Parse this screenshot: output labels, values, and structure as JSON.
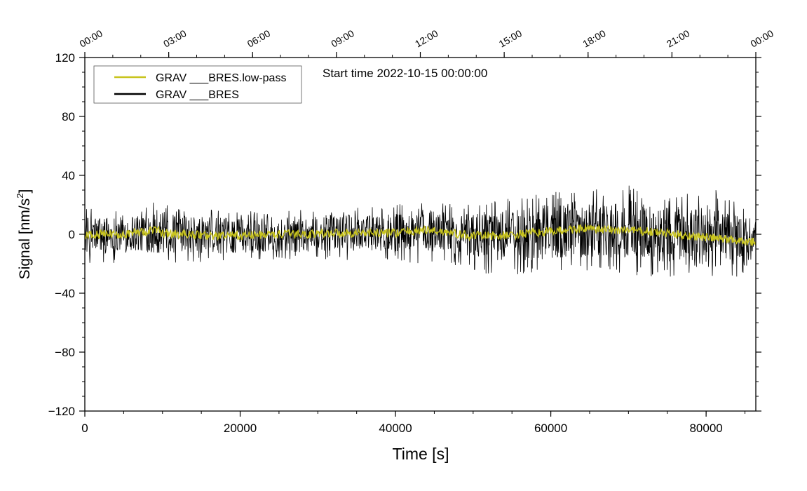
{
  "chart_data": {
    "type": "line",
    "annotation": "Start time 2022-10-15 00:00:00",
    "xlabel": "Time [s]",
    "ylabel_main": "Signal [nm/s",
    "ylabel_sup": "2",
    "ylabel_end": "]",
    "xlim": [
      0,
      86400
    ],
    "ylim": [
      -120,
      120
    ],
    "x_ticks": [
      "0",
      "20000",
      "40000",
      "60000",
      "80000"
    ],
    "x_tick_values": [
      0,
      20000,
      40000,
      60000,
      80000
    ],
    "y_ticks": [
      "120",
      "80",
      "40",
      "0",
      "−40",
      "−80",
      "−120"
    ],
    "y_tick_values": [
      120,
      80,
      40,
      0,
      -40,
      -80,
      -120
    ],
    "top_ticks": [
      "00:00",
      "03:00",
      "06:00",
      "09:00",
      "12:00",
      "15:00",
      "18:00",
      "21:00",
      "00:00"
    ],
    "top_tick_values": [
      0,
      10800,
      21600,
      32400,
      43200,
      54000,
      64800,
      75600,
      86400
    ],
    "legend_placement": "top-left",
    "grid": false,
    "series": [
      {
        "name": "GRAV ___BRES.low-pass",
        "color": "#c8c41e",
        "x": [
          0,
          2000,
          4000,
          6000,
          8000,
          9000,
          10000,
          12000,
          14000,
          16000,
          18000,
          20000,
          24000,
          28000,
          32000,
          36000,
          40000,
          42000,
          43500,
          46000,
          48000,
          50000,
          52000,
          54000,
          56000,
          58000,
          60000,
          62000,
          64000,
          66000,
          68000,
          70000,
          72000,
          74000,
          76000,
          78000,
          80000,
          82000,
          84000,
          86400
        ],
        "values": [
          -1,
          0,
          0,
          1,
          2,
          3,
          1,
          0,
          0,
          -1,
          -1,
          -1,
          0,
          0,
          1,
          1,
          1,
          2,
          3,
          2,
          0,
          -1,
          -1,
          -1,
          0,
          1,
          2,
          3,
          4,
          3,
          3,
          3,
          2,
          1,
          0,
          -1,
          -2,
          -3,
          -4,
          -5
        ],
        "spread": 3
      },
      {
        "name": "GRAV ___BRES",
        "color": "#000000",
        "envelope_x": [
          0,
          4000,
          8000,
          9000,
          12000,
          16000,
          20000,
          24000,
          28000,
          32000,
          36000,
          40000,
          43000,
          46000,
          50000,
          52000,
          54000,
          58000,
          62000,
          64000,
          68000,
          70000,
          72000,
          76000,
          80000,
          84000,
          86400
        ],
        "envelope_upper": [
          18,
          18,
          20,
          25,
          18,
          18,
          16,
          17,
          18,
          18,
          18,
          20,
          25,
          22,
          20,
          22,
          24,
          27,
          30,
          32,
          30,
          34,
          30,
          26,
          34,
          22,
          18
        ],
        "envelope_lower": [
          -20,
          -20,
          -22,
          -22,
          -20,
          -19,
          -19,
          -18,
          -18,
          -18,
          -18,
          -18,
          -20,
          -20,
          -24,
          -28,
          -28,
          -28,
          -25,
          -26,
          -26,
          -28,
          -28,
          -30,
          -33,
          -32,
          -28
        ]
      }
    ]
  }
}
